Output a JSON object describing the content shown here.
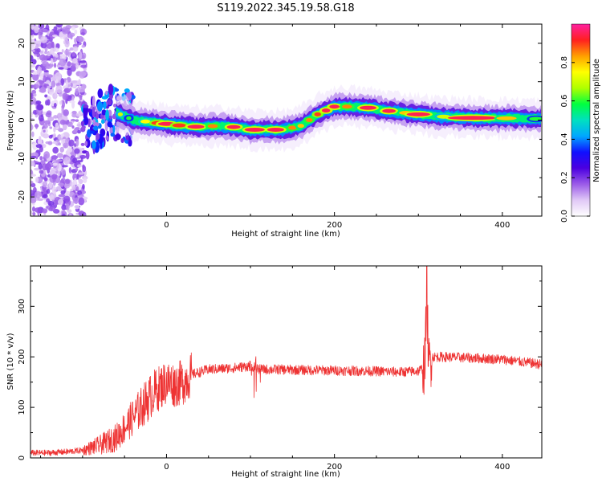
{
  "title": "S119.2022.345.19.58.G18",
  "chart_data": [
    {
      "type": "heatmap",
      "xlabel": "Height of straight line (km)",
      "ylabel": "Frequency (Hz)",
      "xlim": [
        -162,
        447
      ],
      "ylim": [
        -25,
        25
      ],
      "xticks": [
        0,
        200,
        400
      ],
      "yticks": [
        -20,
        -10,
        0,
        10,
        20
      ],
      "colorbar": {
        "label": "Normalized spectral amplitude",
        "range": [
          0,
          1
        ],
        "ticks": [
          0.0,
          0.2,
          0.4,
          0.6,
          0.8
        ],
        "colormap": [
          "#ffffff",
          "#e0c8f6",
          "#9a5ae8",
          "#4b00e0",
          "#1010ff",
          "#00a8ff",
          "#00e0c0",
          "#00ff40",
          "#b0ff00",
          "#ffff00",
          "#ffa000",
          "#ff2020",
          "#ff20a0"
        ]
      },
      "ridge": {
        "x": [
          -100,
          -85,
          -75,
          -60,
          -50,
          -40,
          -20,
          0,
          20,
          40,
          60,
          80,
          100,
          120,
          140,
          150,
          160,
          170,
          180,
          190,
          200,
          220,
          240,
          260,
          280,
          300,
          320,
          340,
          360,
          380,
          400,
          420,
          447
        ],
        "y": [
          -3,
          -1,
          1,
          2,
          1,
          0,
          -0.5,
          -1,
          -1.5,
          -1.8,
          -1.5,
          -1.8,
          -2.5,
          -2.5,
          -2.5,
          -2,
          -1.5,
          0,
          1.5,
          2.5,
          3.5,
          3.5,
          3.2,
          2.5,
          2,
          1.5,
          1,
          0.8,
          0.6,
          0.5,
          0.5,
          0.4,
          0.3
        ]
      }
    },
    {
      "type": "line",
      "xlabel": "Height of straight line (km)",
      "ylabel": "SNR (10 * v/v)",
      "xlim": [
        -162,
        447
      ],
      "ylim": [
        0,
        380
      ],
      "xticks": [
        0,
        200,
        400
      ],
      "yticks": [
        0,
        100,
        200,
        300
      ],
      "series": [
        {
          "color": "#ee3333",
          "x": [
            -162,
            -140,
            -120,
            -100,
            -80,
            -60,
            -45,
            -30,
            -15,
            0,
            10,
            20,
            30,
            50,
            80,
            100,
            110,
            130,
            160,
            200,
            240,
            280,
            300,
            308,
            310,
            312,
            315,
            330,
            360,
            400,
            447
          ],
          "y": [
            10,
            10,
            12,
            15,
            25,
            40,
            70,
            100,
            130,
            150,
            145,
            150,
            165,
            175,
            178,
            182,
            175,
            175,
            174,
            173,
            172,
            170,
            172,
            180,
            360,
            180,
            200,
            200,
            198,
            195,
            185
          ]
        }
      ]
    }
  ]
}
